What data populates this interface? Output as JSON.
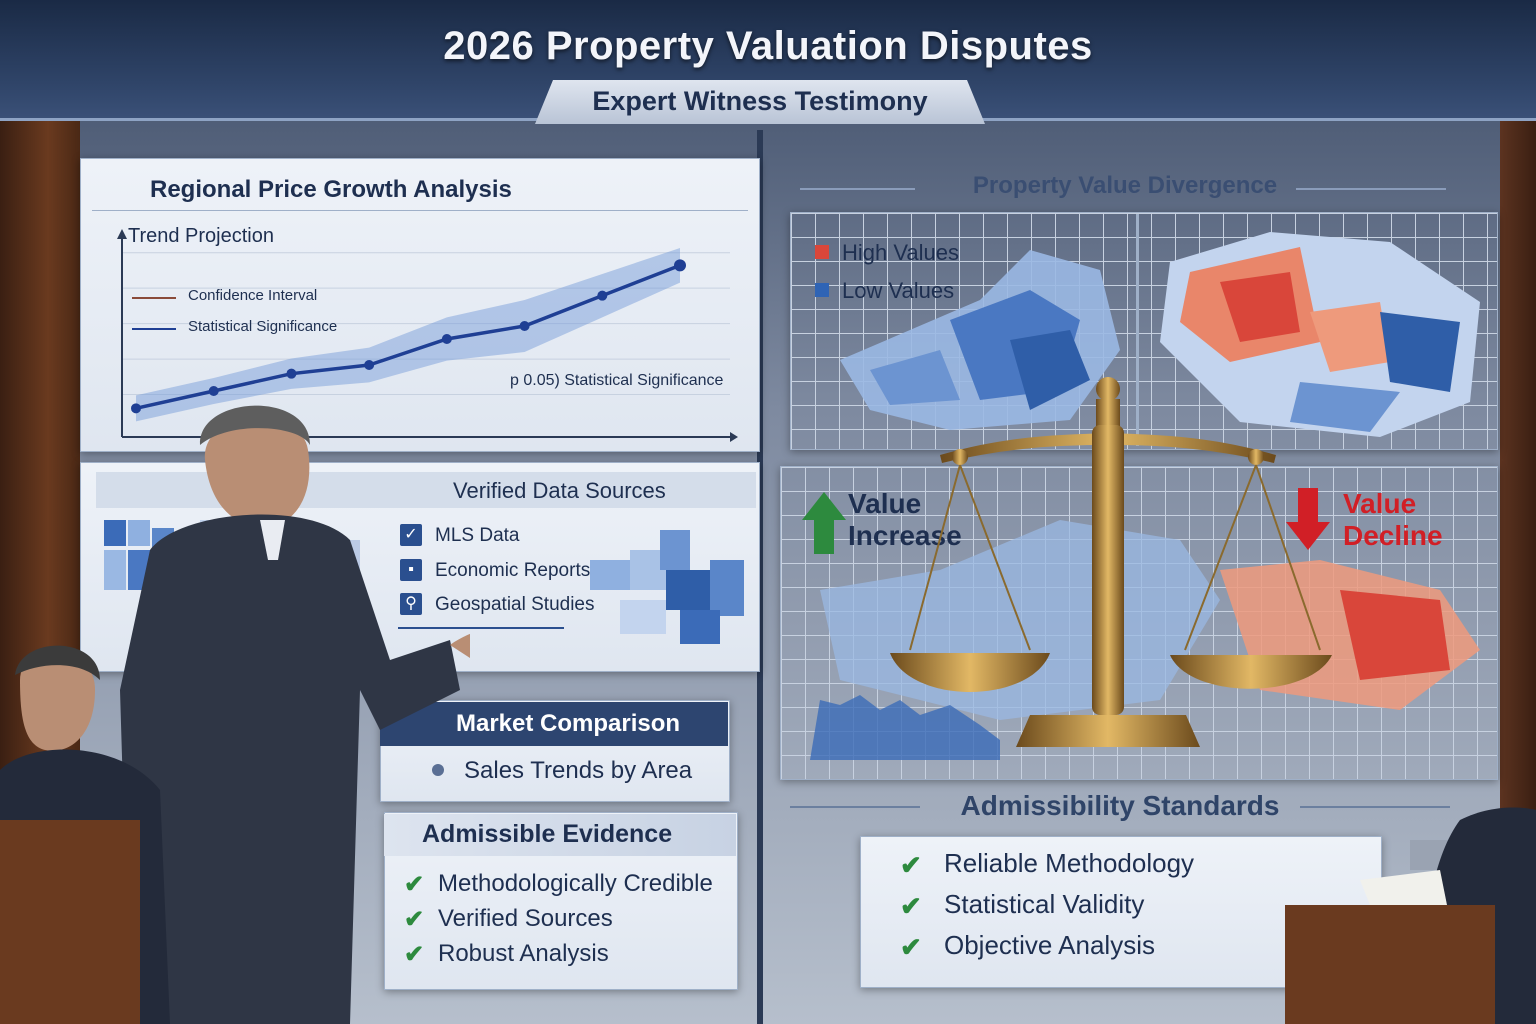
{
  "header": {
    "title": "2026 Property Valuation Disputes",
    "subtitle": "Expert Witness Testimony"
  },
  "growth_panel": {
    "title": "Regional Price Growth Analysis",
    "chart_label": "Trend Projection",
    "legend": [
      "Confidence Interval",
      "Statistical Significance"
    ],
    "annotation": "p 0.05) Statistical Significance"
  },
  "sources_panel": {
    "title": "Verified Data Sources",
    "items": [
      "MLS Data",
      "Economic Reports",
      "Geospatial Studies"
    ]
  },
  "market_panel": {
    "title": "Market Comparison",
    "item": "Sales Trends by Area"
  },
  "evidence_panel": {
    "title": "Admissible Evidence",
    "items": [
      "Methodologically Credible",
      "Verified Sources",
      "Robust Analysis"
    ]
  },
  "divergence_panel": {
    "title": "Property Value Divergence",
    "legend": [
      {
        "label": "High Values",
        "color": "#d9463a"
      },
      {
        "label": "Low Values",
        "color": "#2f64b5"
      }
    ]
  },
  "value_labels": {
    "increase_line1": "Value",
    "increase_line2": "Increase",
    "decline_line1": "Value",
    "decline_line2": "Decline",
    "increase_color": "#1e2f50",
    "decline_color": "#d11f26"
  },
  "admissibility": {
    "title": "Admissibility Standards",
    "items": [
      "Reliable Methodology",
      "Statistical Validity",
      "Objective Analysis"
    ]
  },
  "colors": {
    "accent_navy": "#1e2f50",
    "chart_line": "#1f3f94",
    "check_green": "#2d8a3e",
    "brass": "#b58a3a"
  },
  "chart_data": {
    "type": "line",
    "title": "Trend Projection",
    "x": [
      1,
      2,
      3,
      4,
      5,
      6,
      7,
      8
    ],
    "series": [
      {
        "name": "Statistical Significance",
        "values": [
          1.0,
          1.8,
          2.6,
          3.0,
          4.2,
          4.8,
          6.2,
          7.6
        ]
      },
      {
        "name": "Confidence Interval",
        "values": [
          1.6,
          2.4,
          3.3,
          3.8,
          5.2,
          6.0,
          7.2,
          8.4
        ]
      }
    ],
    "ylim": [
      0,
      9
    ],
    "grid": true
  }
}
